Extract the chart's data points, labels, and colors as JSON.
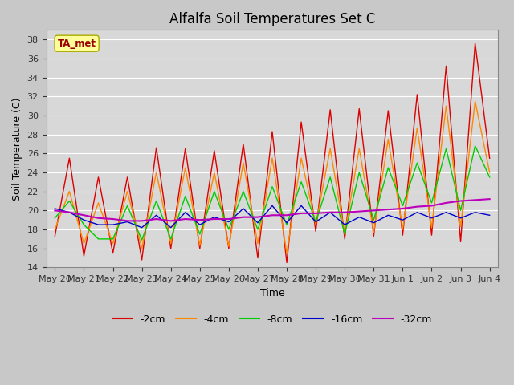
{
  "title": "Alfalfa Soil Temperatures Set C",
  "xlabel": "Time",
  "ylabel": "Soil Temperature (C)",
  "ylim": [
    14,
    39
  ],
  "yticks": [
    14,
    16,
    18,
    20,
    22,
    24,
    26,
    28,
    30,
    32,
    34,
    36,
    38
  ],
  "bg_color": "#d8d8d8",
  "fig_color": "#c8c8c8",
  "grid_color": "#ffffff",
  "annotation_text": "TA_met",
  "annotation_bg": "#ffff99",
  "annotation_border": "#aaaa00",
  "annotation_text_color": "#990000",
  "series": {
    "-2cm": {
      "color": "#dd0000",
      "lw": 1.0
    },
    "-4cm": {
      "color": "#ff8800",
      "lw": 1.0
    },
    "-8cm": {
      "color": "#00cc00",
      "lw": 1.0
    },
    "-16cm": {
      "color": "#0000cc",
      "lw": 1.0
    },
    "-32cm": {
      "color": "#bb00bb",
      "lw": 1.5
    }
  },
  "x_labels": [
    "May 20",
    "May 21",
    "May 22",
    "May 23",
    "May 24",
    "May 25",
    "May 26",
    "May 27",
    "May 28",
    "May 29",
    "May 30",
    "May 31",
    "Jun 1",
    "Jun 2",
    "Jun 3",
    "Jun 4"
  ],
  "x_positions": [
    0,
    1,
    2,
    3,
    4,
    5,
    6,
    7,
    8,
    9,
    10,
    11,
    12,
    13,
    14,
    15
  ],
  "data_2cm": [
    17.3,
    25.5,
    15.2,
    23.5,
    15.5,
    23.5,
    14.8,
    26.6,
    16.0,
    26.5,
    16.0,
    26.3,
    16.0,
    27.0,
    15.0,
    28.3,
    14.5,
    29.3,
    17.8,
    30.6,
    17.0,
    30.7,
    17.3,
    30.5,
    17.4,
    32.2,
    17.4,
    35.2,
    16.7,
    37.6,
    25.5
  ],
  "data_4cm": [
    18.0,
    22.0,
    16.5,
    20.8,
    16.5,
    22.0,
    16.0,
    24.0,
    16.5,
    24.5,
    16.3,
    24.0,
    16.2,
    25.0,
    16.5,
    25.5,
    15.5,
    25.5,
    18.5,
    26.5,
    17.5,
    26.5,
    17.7,
    27.5,
    18.0,
    28.7,
    18.2,
    31.0,
    18.3,
    31.5,
    24.0
  ],
  "data_8cm": [
    19.2,
    21.0,
    18.5,
    17.0,
    17.0,
    20.5,
    16.9,
    21.0,
    17.0,
    21.5,
    17.5,
    22.0,
    18.0,
    22.0,
    18.0,
    22.5,
    18.5,
    23.0,
    18.8,
    23.5,
    17.5,
    24.0,
    19.0,
    24.5,
    20.5,
    25.0,
    20.8,
    26.5,
    20.0,
    26.8,
    23.5
  ],
  "data_16cm": [
    20.2,
    19.8,
    19.0,
    18.5,
    18.5,
    18.8,
    18.2,
    19.5,
    18.2,
    19.8,
    18.5,
    19.3,
    18.8,
    20.2,
    18.7,
    20.5,
    18.7,
    20.5,
    18.8,
    19.8,
    18.5,
    19.3,
    18.7,
    19.5,
    19.0,
    19.8,
    19.2,
    19.8,
    19.2,
    19.8,
    19.5
  ],
  "data_32cm": [
    20.0,
    19.8,
    19.5,
    19.2,
    19.1,
    18.9,
    18.9,
    19.1,
    18.9,
    19.1,
    19.0,
    19.1,
    19.1,
    19.3,
    19.3,
    19.5,
    19.5,
    19.7,
    19.7,
    19.8,
    19.8,
    19.9,
    20.0,
    20.1,
    20.2,
    20.4,
    20.5,
    20.8,
    21.0,
    21.1,
    21.2
  ]
}
